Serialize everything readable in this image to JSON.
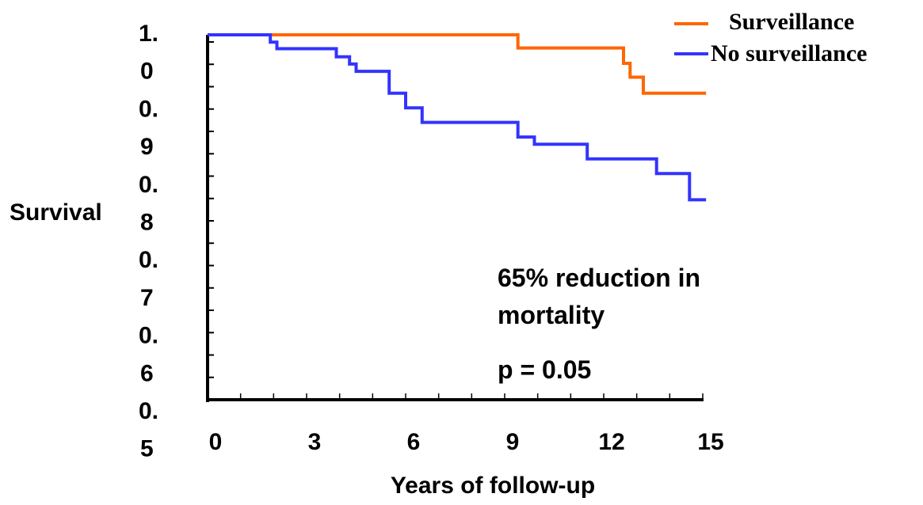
{
  "chart_data": {
    "type": "line",
    "step": true,
    "title": "",
    "xlabel": "Years of follow-up",
    "ylabel": "Survival",
    "xlim": [
      0,
      15
    ],
    "ylim": [
      0.5,
      1.0
    ],
    "x_ticks": [
      0,
      3,
      6,
      9,
      12,
      15
    ],
    "x_tick_labels": [
      "0",
      "3",
      "6",
      "9",
      "12",
      "15"
    ],
    "y_tick_labels": [
      [
        "1.",
        "0"
      ],
      [
        "0.",
        "9"
      ],
      [
        "0.",
        "8"
      ],
      [
        "0.",
        "7"
      ],
      [
        "0.",
        "6"
      ],
      [
        "0.",
        "5"
      ]
    ],
    "grid": false,
    "legend_position": "top-right",
    "series": [
      {
        "name": "Surveillance",
        "color": "#FF6600",
        "x": [
          0,
          9.4,
          9.4,
          12.6,
          12.6,
          12.8,
          12.8,
          13.2,
          13.2,
          15.1
        ],
        "y": [
          1.0,
          1.0,
          0.982,
          0.982,
          0.961,
          0.961,
          0.942,
          0.942,
          0.92,
          0.92
        ]
      },
      {
        "name": "No surveillance",
        "color": "#3333FF",
        "x": [
          0,
          1.9,
          1.9,
          2.1,
          2.1,
          3.9,
          3.9,
          4.3,
          4.3,
          4.5,
          4.5,
          5.5,
          5.5,
          6.0,
          6.0,
          6.5,
          6.5,
          9.4,
          9.4,
          9.9,
          9.9,
          11.5,
          11.5,
          13.6,
          13.6,
          14.6,
          14.6,
          15.1
        ],
        "y": [
          1.0,
          1.0,
          0.99,
          0.99,
          0.981,
          0.981,
          0.97,
          0.97,
          0.96,
          0.96,
          0.95,
          0.95,
          0.92,
          0.92,
          0.9,
          0.9,
          0.88,
          0.88,
          0.86,
          0.86,
          0.85,
          0.85,
          0.83,
          0.83,
          0.81,
          0.81,
          0.774,
          0.774
        ]
      }
    ],
    "annotations": [
      "65% reduction in",
      "mortality",
      "p = 0.05"
    ]
  }
}
